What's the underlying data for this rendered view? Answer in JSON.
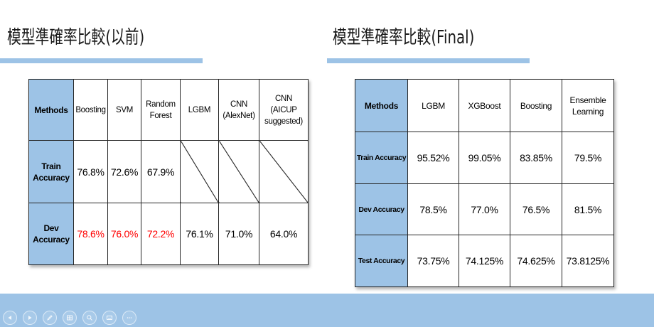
{
  "colors": {
    "accent": "#9dc3e6",
    "highlight": "#ff0000"
  },
  "previous_section": {
    "title": "模型準確率比較(以前)",
    "table": {
      "headers": [
        "Methods",
        "Boosting",
        "SVM",
        "Random Forest",
        "LGBM",
        "CNN (AlexNet)",
        "CNN (AICUP suggested)"
      ],
      "rows": [
        {
          "label": "Train Accuracy",
          "values": [
            "76.8%",
            "72.6%",
            "67.9%",
            null,
            null,
            null
          ]
        },
        {
          "label": "Dev Accuracy",
          "values": [
            "78.6%",
            "76.0%",
            "72.2%",
            "76.1%",
            "71.0%",
            "64.0%"
          ],
          "highlighted": [
            0,
            1,
            2
          ]
        }
      ]
    }
  },
  "final_section": {
    "title": "模型準確率比較(Final)",
    "table": {
      "headers": [
        "Methods",
        "LGBM",
        "XGBoost",
        "Boosting",
        "Ensemble Learning"
      ],
      "rows": [
        {
          "label": "Train Accuracy",
          "values": [
            "95.52%",
            "99.05%",
            "83.85%",
            "79.5%"
          ]
        },
        {
          "label": "Dev Accuracy",
          "values": [
            "78.5%",
            "77.0%",
            "76.5%",
            "81.5%"
          ]
        },
        {
          "label": "Test Accuracy",
          "values": [
            "73.75%",
            "74.125%",
            "74.625%",
            "73.8125%"
          ]
        }
      ]
    }
  },
  "slideshow_controls": {
    "icons": [
      "previous-slide-icon",
      "next-slide-icon",
      "pen-icon",
      "slide-grid-icon",
      "zoom-icon",
      "subtitles-icon",
      "more-options-icon"
    ]
  }
}
